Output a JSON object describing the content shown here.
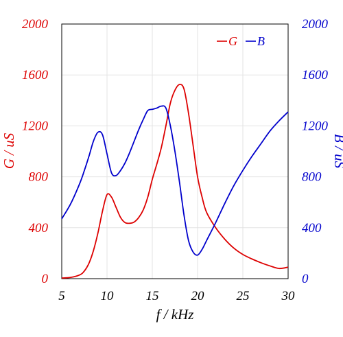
{
  "chart_data": {
    "type": "line",
    "xlabel": "f / kHz",
    "ylabel_left": "G / uS",
    "ylabel_right": "B / uS",
    "xlim": [
      5,
      30
    ],
    "ylim_left": [
      0,
      2000
    ],
    "ylim_right": [
      0,
      2000
    ],
    "x_ticks": [
      5,
      10,
      15,
      20,
      25,
      30
    ],
    "y_ticks_left": [
      0,
      400,
      800,
      1200,
      1600,
      2000
    ],
    "y_ticks_right": [
      0,
      400,
      800,
      1200,
      1600,
      2000
    ],
    "grid": true,
    "legend_position": "top-right",
    "colors": {
      "G": "#dd0000",
      "B": "#0000cc",
      "axis_left": "#dd0000",
      "axis_right": "#0000cc"
    },
    "series": [
      {
        "name": "G",
        "axis": "left",
        "color": "#dd0000",
        "x": [
          5,
          6,
          7,
          7.5,
          8,
          8.5,
          9,
          9.5,
          10,
          10.5,
          11,
          11.5,
          12,
          12.5,
          13,
          13.5,
          14,
          14.5,
          15,
          15.5,
          16,
          16.5,
          17,
          17.5,
          18,
          18.5,
          19,
          19.5,
          20,
          20.5,
          21,
          22,
          23,
          24,
          25,
          26,
          27,
          28,
          29,
          30
        ],
        "values": [
          5,
          10,
          30,
          60,
          120,
          220,
          360,
          530,
          660,
          640,
          560,
          480,
          440,
          435,
          445,
          480,
          540,
          640,
          780,
          900,
          1030,
          1200,
          1380,
          1480,
          1525,
          1490,
          1300,
          1050,
          800,
          640,
          520,
          400,
          310,
          240,
          190,
          155,
          125,
          100,
          80,
          90
        ]
      },
      {
        "name": "B",
        "axis": "right",
        "color": "#0000cc",
        "x": [
          5,
          6,
          7,
          7.5,
          8,
          8.5,
          9,
          9.5,
          10,
          10.5,
          11,
          11.5,
          12,
          12.5,
          13,
          13.5,
          14,
          14.5,
          15,
          15.5,
          16,
          16.5,
          17,
          17.5,
          18,
          18.5,
          19,
          19.5,
          20,
          20.5,
          21,
          22,
          23,
          24,
          25,
          26,
          27,
          28,
          29,
          30
        ],
        "values": [
          470,
          590,
          750,
          850,
          960,
          1080,
          1150,
          1130,
          980,
          830,
          810,
          850,
          910,
          990,
          1080,
          1170,
          1250,
          1320,
          1330,
          1340,
          1355,
          1340,
          1200,
          1000,
          760,
          500,
          300,
          210,
          185,
          230,
          300,
          440,
          590,
          730,
          850,
          960,
          1060,
          1160,
          1240,
          1310
        ]
      }
    ]
  }
}
